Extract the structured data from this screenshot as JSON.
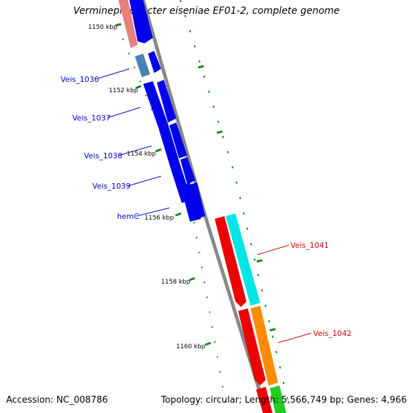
{
  "title": "Verminephrobacter eiseniae EF01-2, complete genome",
  "footer": {
    "accession": "Accession: NC_008786",
    "summary": "Topology: circular; Length: 5,566,749 bp; Genes: 4,966"
  },
  "scale_labels": [
    "1150 kbp",
    "1152 kbp",
    "1154 kbp",
    "1156 kbp",
    "1158 kbp",
    "1160 kbp"
  ],
  "gene_labels": [
    {
      "text": "Veis_1036",
      "color": "#0000cc"
    },
    {
      "text": "Veis_1037",
      "color": "#0000cc"
    },
    {
      "text": "Veis_1038",
      "color": "#0000cc"
    },
    {
      "text": "Veis_1039",
      "color": "#0000cc"
    },
    {
      "text": "hemC",
      "color": "#0000cc"
    },
    {
      "text": "Veis_1041",
      "color": "#cc0000"
    },
    {
      "text": "Veis_1042",
      "color": "#cc0000"
    }
  ],
  "colors": {
    "backbone": "#888888",
    "forward_gene": "#0000ee",
    "reverse_gene": "#ee0000",
    "tick": "#118811",
    "cyan_track": "#00e5e5",
    "orange_track": "#ff8c00",
    "green_track": "#22cc22",
    "pink_track": "#e88080",
    "steel_track": "#4682b4"
  }
}
